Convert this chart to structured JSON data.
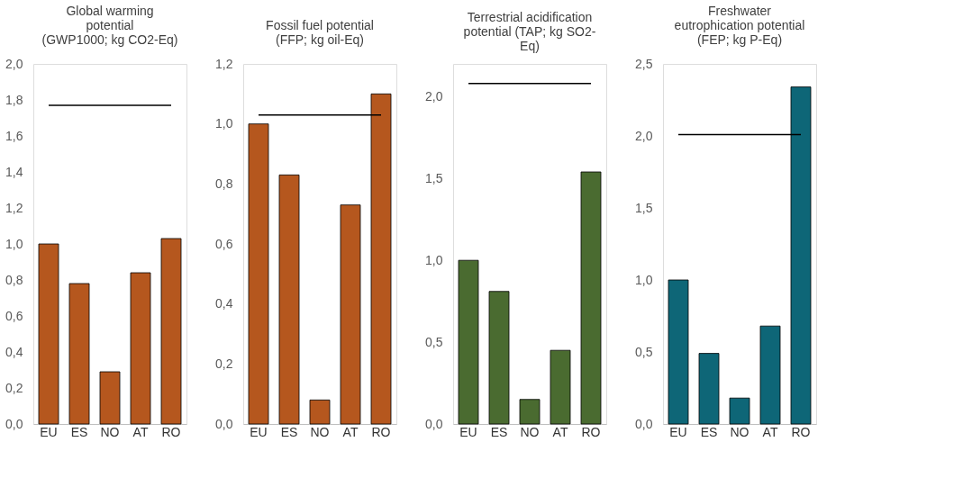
{
  "chart_data": [
    {
      "type": "bar",
      "title": "Global warming\npotential\n(GWP1000; kg CO2-Eq)",
      "categories": [
        "EU",
        "ES",
        "NO",
        "AT",
        "RO"
      ],
      "values": [
        1.0,
        0.78,
        0.29,
        0.84,
        1.03
      ],
      "color": "#b5571e",
      "ylim": [
        0,
        2.0
      ],
      "yticks": [
        {
          "value": 0,
          "label": "0,0"
        },
        {
          "value": 0.2,
          "label": "0,2"
        },
        {
          "value": 0.4,
          "label": "0,4"
        },
        {
          "value": 0.6,
          "label": "0,6"
        },
        {
          "value": 0.8,
          "label": "0,8"
        },
        {
          "value": 1.0,
          "label": "1,0"
        },
        {
          "value": 1.2,
          "label": "1,2"
        },
        {
          "value": 1.4,
          "label": "1,4"
        },
        {
          "value": 1.6,
          "label": "1,6"
        },
        {
          "value": 1.8,
          "label": "1,8"
        },
        {
          "value": 2.0,
          "label": "2,0"
        }
      ],
      "ref_lines": [
        {
          "axis": "y",
          "value": 1.77,
          "color": "#000000"
        }
      ],
      "grid": false
    },
    {
      "type": "bar",
      "title": "Fossil fuel potential\n(FFP; kg oil-Eq)",
      "categories": [
        "EU",
        "ES",
        "NO",
        "AT",
        "RO"
      ],
      "values": [
        1.0,
        0.83,
        0.08,
        0.73,
        1.1
      ],
      "color": "#b5571e",
      "ylim": [
        0,
        1.2
      ],
      "yticks": [
        {
          "value": 0,
          "label": "0,0"
        },
        {
          "value": 0.2,
          "label": "0,2"
        },
        {
          "value": 0.4,
          "label": "0,4"
        },
        {
          "value": 0.6,
          "label": "0,6"
        },
        {
          "value": 0.8,
          "label": "0,8"
        },
        {
          "value": 1.0,
          "label": "1,0"
        },
        {
          "value": 1.2,
          "label": "1,2"
        }
      ],
      "ref_lines": [
        {
          "axis": "y",
          "value": 1.03,
          "color": "#000000"
        }
      ],
      "grid": false
    },
    {
      "type": "bar",
      "title": "Terrestrial acidification\npotential (TAP; kg SO2-\nEq)",
      "categories": [
        "EU",
        "ES",
        "NO",
        "AT",
        "RO"
      ],
      "values": [
        1.0,
        0.81,
        0.15,
        0.45,
        1.54
      ],
      "color": "#4a6b30",
      "ylim": [
        0,
        2.2
      ],
      "yticks": [
        {
          "value": 0,
          "label": "0,0"
        },
        {
          "value": 0.5,
          "label": "0,5"
        },
        {
          "value": 1.0,
          "label": "1,0"
        },
        {
          "value": 1.5,
          "label": "1,5"
        },
        {
          "value": 2.0,
          "label": "2,0"
        }
      ],
      "ref_lines": [
        {
          "axis": "y",
          "value": 2.08,
          "color": "#000000"
        }
      ],
      "grid": false
    },
    {
      "type": "bar",
      "title": "Freshwater\neutrophication potential\n(FEP; kg P-Eq)",
      "categories": [
        "EU",
        "ES",
        "NO",
        "AT",
        "RO"
      ],
      "values": [
        1.0,
        0.49,
        0.18,
        0.68,
        2.34
      ],
      "color": "#0e6677",
      "ylim": [
        0,
        2.5
      ],
      "yticks": [
        {
          "value": 0,
          "label": "0,0"
        },
        {
          "value": 0.5,
          "label": "0,5"
        },
        {
          "value": 1.0,
          "label": "1,0"
        },
        {
          "value": 1.5,
          "label": "1,5"
        },
        {
          "value": 2.0,
          "label": "2,0"
        },
        {
          "value": 2.5,
          "label": "2,5"
        }
      ],
      "ref_lines": [
        {
          "axis": "y",
          "value": 2.01,
          "color": "#000000"
        }
      ],
      "grid": false
    }
  ]
}
